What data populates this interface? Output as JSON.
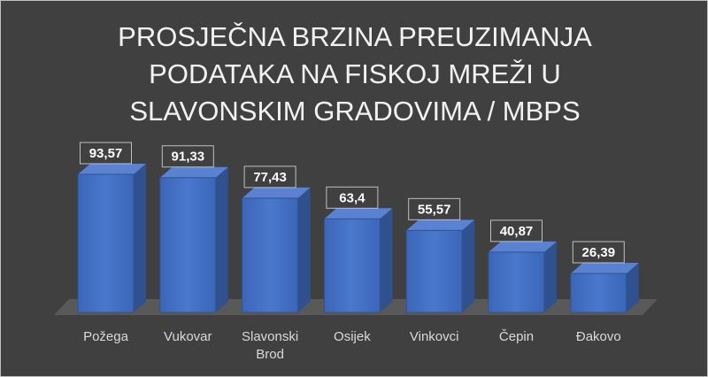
{
  "chart_data": {
    "type": "bar3d",
    "title": "PROSJEČNA BRZINA PREUZIMANJA PODATAKA NA FISKOJ MREŽI U SLAVONSKIM GRADOVIMA / MBPS",
    "categories": [
      "Požega",
      "Vukovar",
      "Slavonski Brod",
      "Osijek",
      "Vinkovci",
      "Čepin",
      "Đakovo"
    ],
    "values": [
      93.57,
      91.33,
      77.43,
      63.4,
      55.57,
      40.87,
      26.39
    ],
    "value_labels": [
      "93,57",
      "91,33",
      "77,43",
      "63,4",
      "55,57",
      "40,87",
      "26,39"
    ],
    "color": "#4472c4"
  }
}
